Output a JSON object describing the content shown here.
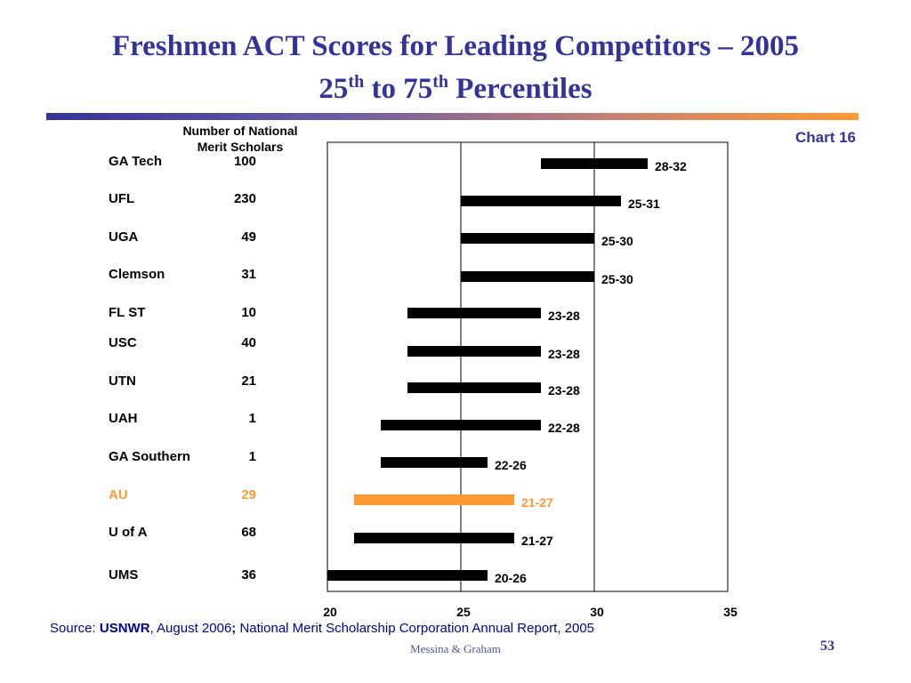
{
  "slide": {
    "title_line1": "Freshmen ACT Scores for Leading Competitors – 2005",
    "title2_a": "25",
    "title2_sup1": "th",
    "title2_b": " to 75",
    "title2_sup2": "th",
    "title2_c": " Percentiles",
    "chart_label": "Chart 16",
    "column_header": "Number of National Merit Scholars",
    "source_prefix": "Source: ",
    "source_usnwr": "USNWR",
    "source_mid": ", August 2006",
    "source_semicolon": ";",
    "source_rest": " National Merit Scholarship Corporation Annual Report, 2005",
    "footer": "Messina & Graham",
    "page_number": "53"
  },
  "colors": {
    "title": "#333399",
    "bar": "#000000",
    "highlight": "#ff9933"
  },
  "chart_data": {
    "type": "bar",
    "orientation": "horizontal-range",
    "categories": [
      "GA Tech",
      "UFL",
      "UGA",
      "Clemson",
      "FL ST",
      "USC",
      "UTN",
      "UAH",
      "GA Southern",
      "AU",
      "U of A",
      "UMS"
    ],
    "merit_scholars": [
      "100",
      "230",
      "49",
      "31",
      "10",
      "40",
      "21",
      "1",
      "1",
      "29",
      "68",
      "36"
    ],
    "ranges": [
      [
        28,
        32
      ],
      [
        25,
        31
      ],
      [
        25,
        30
      ],
      [
        25,
        30
      ],
      [
        23,
        28
      ],
      [
        23,
        28
      ],
      [
        23,
        28
      ],
      [
        22,
        28
      ],
      [
        22,
        26
      ],
      [
        21,
        27
      ],
      [
        21,
        27
      ],
      [
        20,
        26
      ]
    ],
    "range_labels": [
      "28-32",
      "25-31",
      "25-30",
      "25-30",
      "23-28",
      "23-28",
      "23-28",
      "22-28",
      "22-26",
      "21-27",
      "21-27",
      "20-26"
    ],
    "highlight_index": 9,
    "xlim": [
      20,
      35
    ],
    "xticks": [
      "20",
      "25",
      "30",
      "35"
    ],
    "grid": "vertical lines at 25 and 30",
    "xlabel": "",
    "ylabel": ""
  }
}
